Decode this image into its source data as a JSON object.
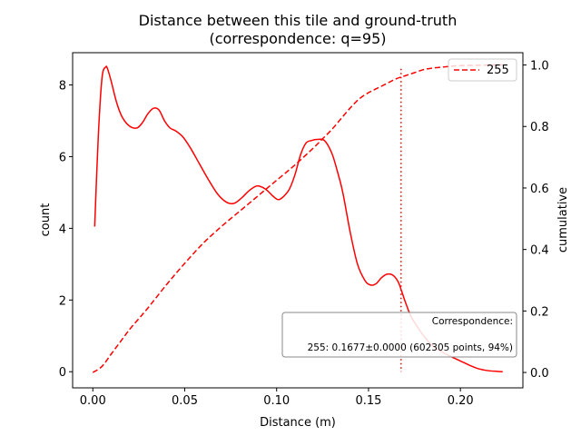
{
  "chart_data": {
    "type": "line",
    "title": "Distance between this tile and ground-truth",
    "subtitle": "(correspondence: q=95)",
    "xlabel": "Distance (m)",
    "ylabel": "count",
    "ylabel_right": "cumulative",
    "xlim": [
      -0.011,
      0.234
    ],
    "ylim": [
      -0.45,
      8.9
    ],
    "ylim_right": [
      -0.05,
      1.04
    ],
    "xticks": [
      0.0,
      0.05,
      0.1,
      0.15,
      0.2
    ],
    "xtick_labels": [
      "0.00",
      "0.05",
      "0.10",
      "0.15",
      "0.20"
    ],
    "yticks": [
      0,
      2,
      4,
      6,
      8
    ],
    "ytick_labels": [
      "0",
      "2",
      "4",
      "6",
      "8"
    ],
    "yticks_right": [
      0.0,
      0.2,
      0.4,
      0.6,
      0.8,
      1.0
    ],
    "ytick_labels_right": [
      "0.0",
      "0.2",
      "0.4",
      "0.6",
      "0.8",
      "1.0"
    ],
    "grid": false,
    "legend_position": "top-right",
    "color": "#ff0000",
    "series": [
      {
        "name": "255",
        "style": "solid",
        "axis": "left",
        "x": [
          0.001,
          0.003,
          0.005,
          0.007,
          0.008,
          0.01,
          0.013,
          0.016,
          0.02,
          0.024,
          0.027,
          0.03,
          0.033,
          0.036,
          0.039,
          0.042,
          0.045,
          0.049,
          0.053,
          0.058,
          0.063,
          0.068,
          0.073,
          0.077,
          0.081,
          0.085,
          0.089,
          0.092,
          0.095,
          0.098,
          0.101,
          0.104,
          0.107,
          0.11,
          0.113,
          0.116,
          0.119,
          0.122,
          0.126,
          0.13,
          0.133,
          0.136,
          0.14,
          0.144,
          0.148,
          0.151,
          0.154,
          0.157,
          0.16,
          0.163,
          0.166,
          0.168,
          0.17,
          0.173,
          0.176,
          0.18,
          0.185,
          0.19,
          0.195,
          0.2,
          0.205,
          0.21,
          0.215,
          0.22,
          0.223
        ],
        "values": [
          4.05,
          6.6,
          8.2,
          8.5,
          8.45,
          8.1,
          7.5,
          7.1,
          6.85,
          6.8,
          6.95,
          7.2,
          7.35,
          7.3,
          7.0,
          6.8,
          6.72,
          6.55,
          6.25,
          5.8,
          5.35,
          4.95,
          4.72,
          4.7,
          4.85,
          5.05,
          5.18,
          5.15,
          5.05,
          4.9,
          4.8,
          4.9,
          5.1,
          5.5,
          6.05,
          6.38,
          6.45,
          6.48,
          6.45,
          6.1,
          5.6,
          5.0,
          3.9,
          3.0,
          2.55,
          2.42,
          2.45,
          2.62,
          2.72,
          2.7,
          2.52,
          2.25,
          1.95,
          1.55,
          1.3,
          1.0,
          0.72,
          0.55,
          0.42,
          0.3,
          0.18,
          0.08,
          0.03,
          0.01,
          0.0
        ]
      },
      {
        "name": "cumulative",
        "style": "dashed",
        "axis": "right",
        "x": [
          0.0,
          0.005,
          0.01,
          0.015,
          0.02,
          0.025,
          0.03,
          0.04,
          0.05,
          0.06,
          0.07,
          0.08,
          0.09,
          0.1,
          0.11,
          0.12,
          0.125,
          0.13,
          0.135,
          0.14,
          0.145,
          0.15,
          0.155,
          0.16,
          0.165,
          0.17,
          0.175,
          0.18,
          0.185,
          0.19,
          0.195,
          0.2,
          0.21,
          0.22,
          0.223
        ],
        "values": [
          0.0,
          0.02,
          0.06,
          0.1,
          0.14,
          0.175,
          0.21,
          0.285,
          0.355,
          0.42,
          0.475,
          0.525,
          0.575,
          0.625,
          0.675,
          0.73,
          0.76,
          0.79,
          0.825,
          0.86,
          0.89,
          0.91,
          0.925,
          0.94,
          0.955,
          0.965,
          0.975,
          0.985,
          0.99,
          0.993,
          0.996,
          0.998,
          0.999,
          1.0,
          1.0
        ]
      }
    ],
    "vline": {
      "x": 0.1677,
      "style": "dotted"
    },
    "annotation": {
      "heading": "Correspondence:",
      "line": "255: 0.1677±0.0000 (602305 points, 94%)"
    }
  }
}
